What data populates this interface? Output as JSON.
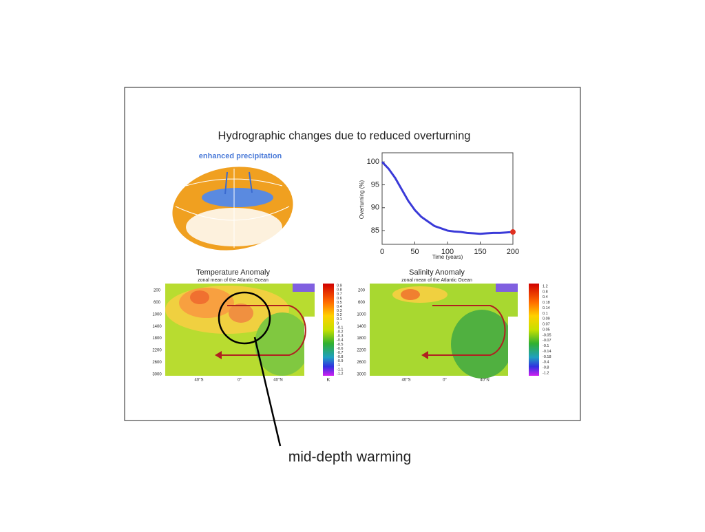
{
  "slide": {
    "title": "Hydrographic changes due to reduced overturning",
    "globe_label": "enhanced precipitation",
    "annotation": "mid-depth warming",
    "panels": [
      {
        "title": "Temperature Anomaly",
        "subtitle": "zonal mean of the Atlantic Ocean",
        "depth_ticks": [
          200,
          600,
          1000,
          1400,
          1800,
          2200,
          2600,
          3000
        ],
        "lat_ticks": [
          "40°S",
          "0°",
          "40°N"
        ],
        "colorbar_labels": [
          "0.9",
          "0.8",
          "0.7",
          "0.6",
          "0.5",
          "0.4",
          "0.3",
          "0.2",
          "0.1",
          "0",
          "-0.1",
          "-0.2",
          "-0.3",
          "-0.4",
          "-0.5",
          "-0.6",
          "-0.7",
          "-0.8",
          "-0.9",
          "-1",
          "-1.1",
          "-1.2"
        ],
        "colorbar_unit": "K"
      },
      {
        "title": "Salinity Anomaly",
        "subtitle": "zonal mean of the Atlantic Ocean",
        "depth_ticks": [
          200,
          600,
          1000,
          1400,
          1800,
          2200,
          2600,
          3000
        ],
        "lat_ticks": [
          "40°S",
          "0°",
          "40°N"
        ],
        "colorbar_labels": [
          "1.2",
          "0.8",
          "0.4",
          "0.18",
          "0.14",
          "0.1",
          "0.09",
          "0.07",
          "0.05",
          "-0.05",
          "-0.07",
          "-0.1",
          "-0.14",
          "-0.18",
          "-0.4",
          "-0.8",
          "-1.2"
        ]
      }
    ]
  },
  "chart_data": {
    "type": "line",
    "ylabel": "Overturning (%)",
    "xlabel": "Time (years)",
    "x": [
      0,
      10,
      20,
      30,
      40,
      50,
      60,
      70,
      80,
      90,
      100,
      110,
      120,
      130,
      140,
      150,
      160,
      170,
      180,
      190,
      200
    ],
    "series": [
      {
        "color": "#3a3ad8",
        "values": [
          100,
          98.5,
          96.5,
          94,
          91.5,
          89.5,
          88,
          87,
          86,
          85.5,
          85,
          84.8,
          84.7,
          84.5,
          84.4,
          84.3,
          84.4,
          84.5,
          84.5,
          84.6,
          84.7
        ]
      }
    ],
    "xlim": [
      0,
      200
    ],
    "ylim": [
      82,
      102
    ],
    "xticks": [
      0,
      50,
      100,
      150,
      200
    ],
    "yticks": [
      85,
      90,
      95,
      100
    ],
    "end_marker_color": "#e03020"
  }
}
